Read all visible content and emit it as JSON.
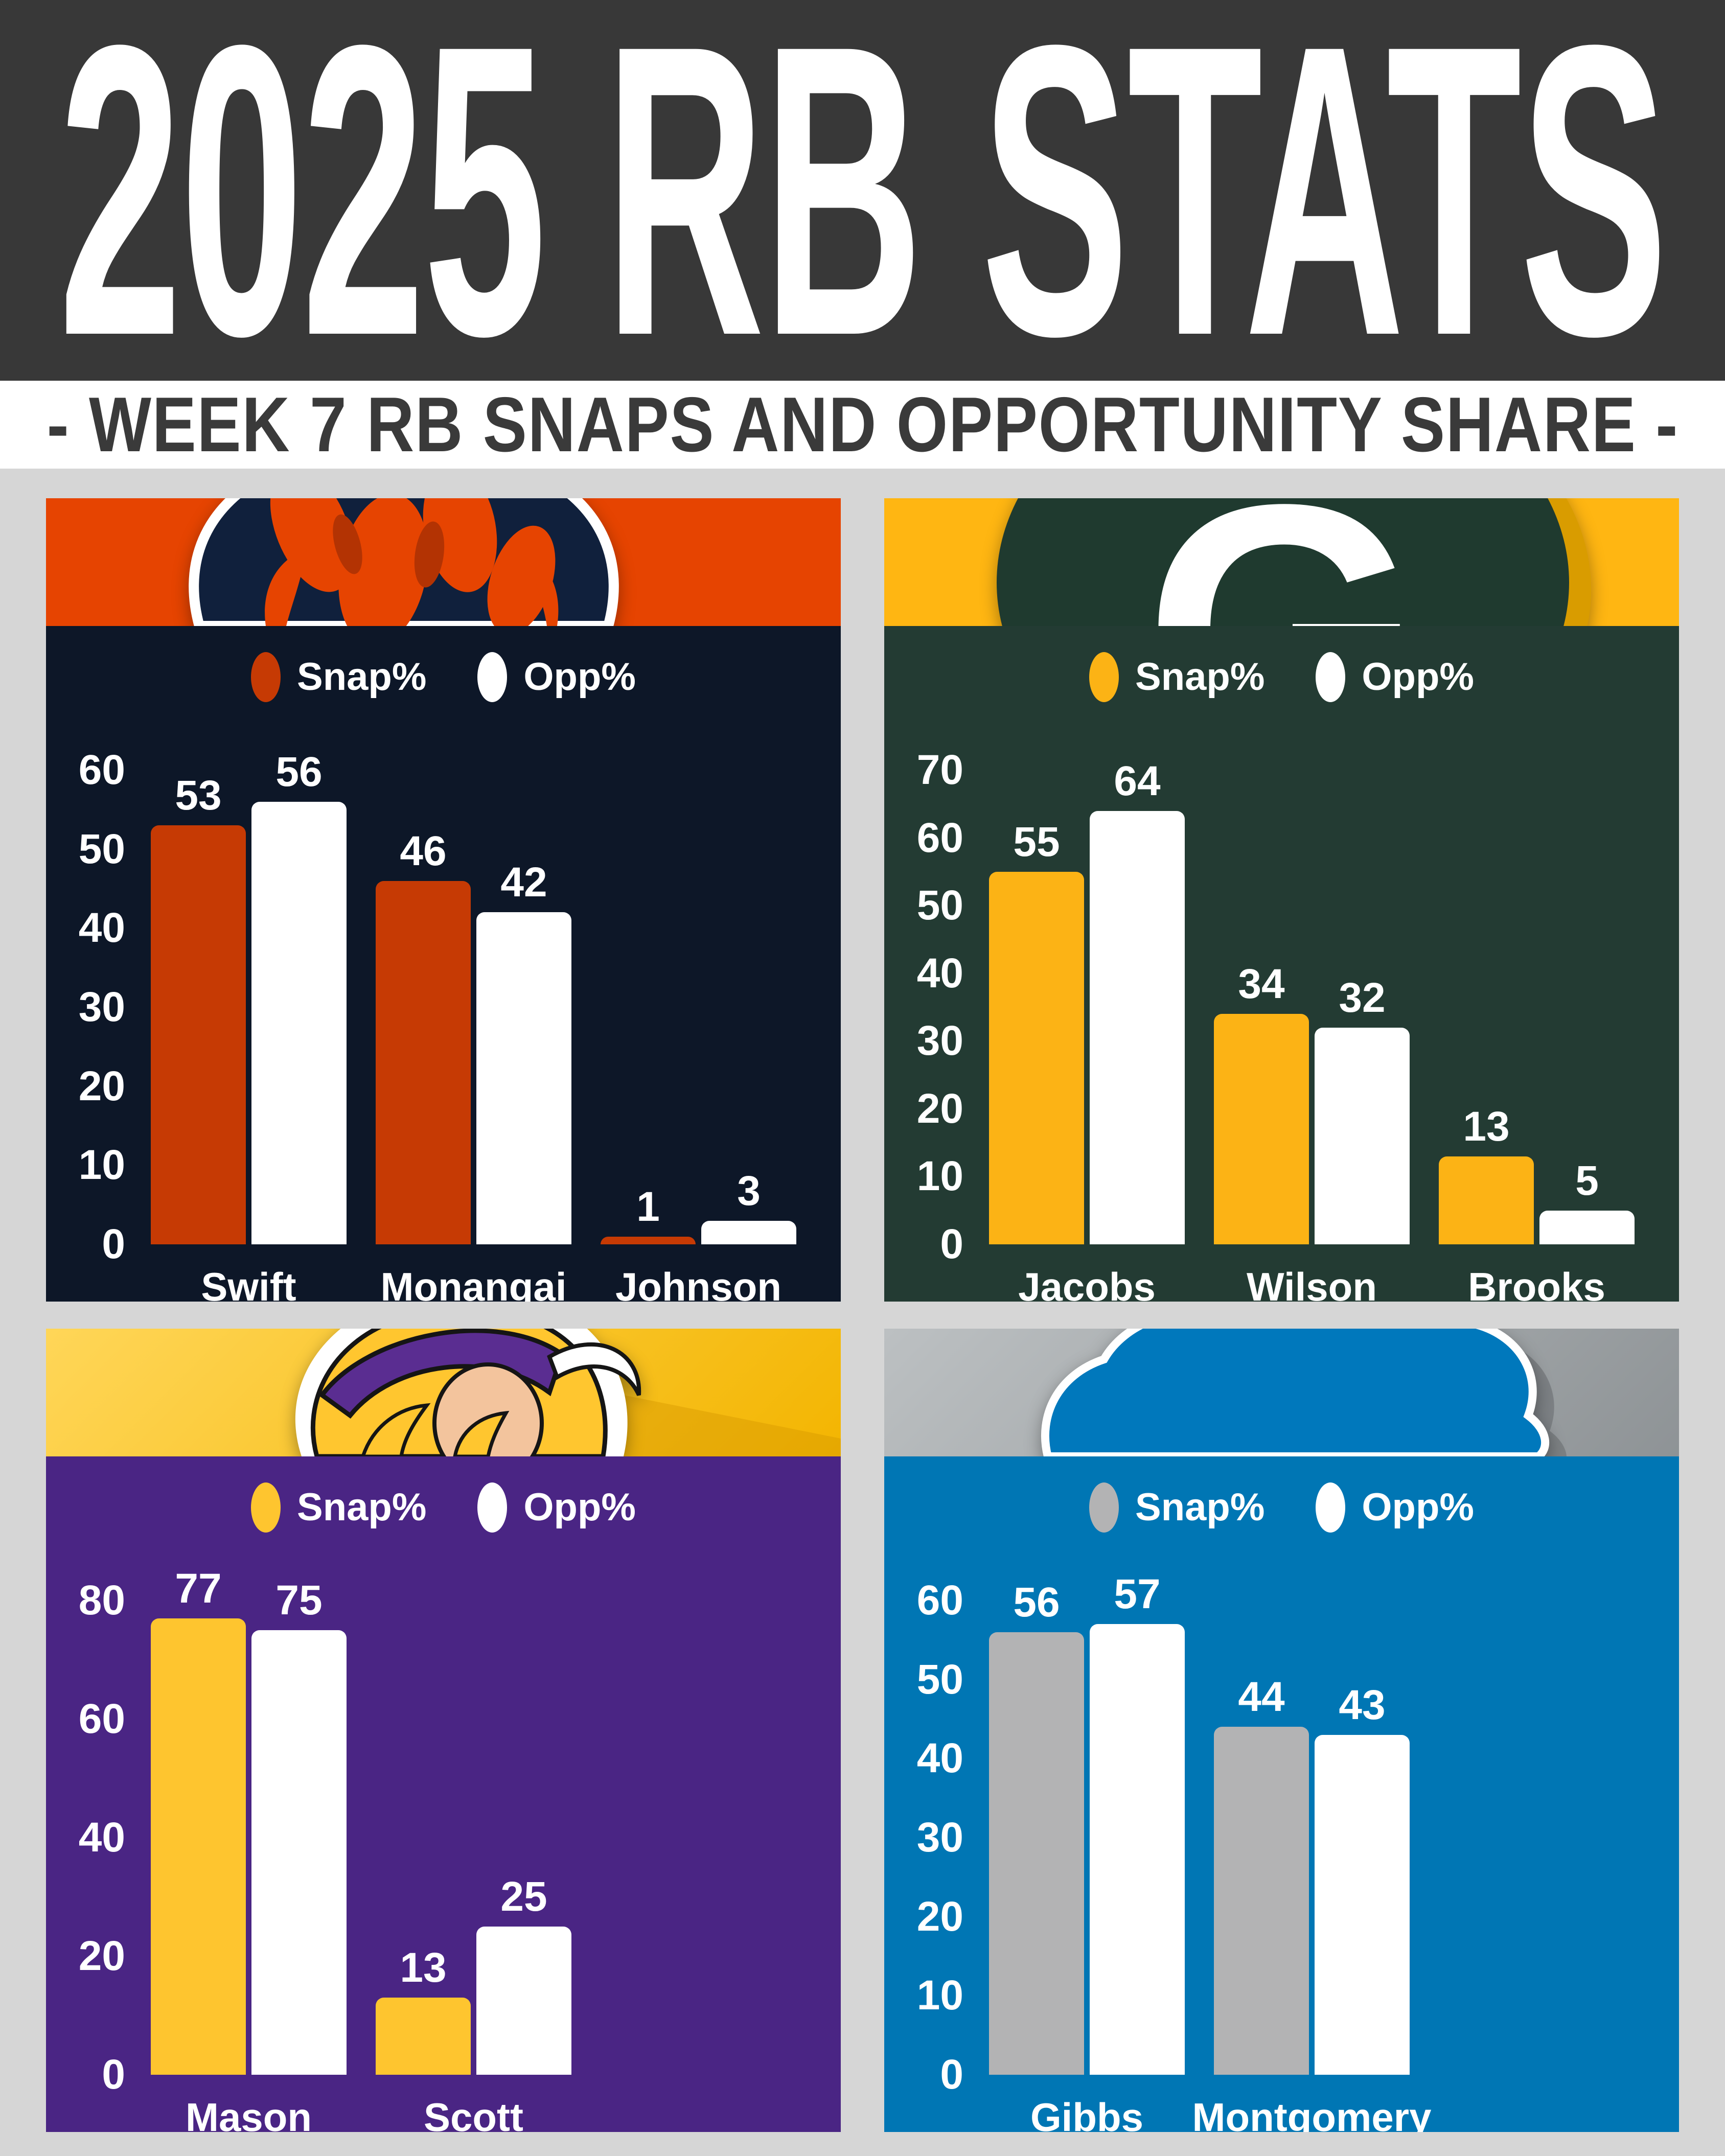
{
  "page": {
    "title": "2025 RB STATS",
    "subtitle": "- WEEK 7 RB SNAPS AND OPPORTUNITY SHARE -",
    "colors": {
      "background": "#D6D6D6",
      "title_band": "#383838",
      "title_text": "#FFFFFF",
      "subtitle_band": "#FFFFFF",
      "subtitle_text": "#3A3A3A"
    }
  },
  "chart_data": [
    {
      "type": "bar",
      "team": "Chicago Bears",
      "legend_position": "top",
      "grid": false,
      "categories": [
        "Swift",
        "Monangai",
        "Johnson"
      ],
      "series": [
        {
          "name": "Snap%",
          "values": [
            53,
            46,
            1
          ]
        },
        {
          "name": "Opp%",
          "values": [
            56,
            42,
            3
          ]
        }
      ],
      "y_ticks": [
        60,
        50,
        40,
        30,
        20,
        10,
        0
      ],
      "ylim": [
        0,
        60
      ],
      "colors": {
        "header": "#E64401",
        "chart_bg": "#0D1728",
        "snap": "#C63A04",
        "opp": "#FFFFFF",
        "text": "#FFFFFF"
      }
    },
    {
      "type": "bar",
      "team": "Green Bay Packers",
      "legend_position": "top",
      "grid": false,
      "categories": [
        "Jacobs",
        "Wilson",
        "Brooks"
      ],
      "series": [
        {
          "name": "Snap%",
          "values": [
            55,
            34,
            13
          ]
        },
        {
          "name": "Opp%",
          "values": [
            64,
            32,
            5
          ]
        }
      ],
      "y_ticks": [
        70,
        60,
        50,
        40,
        30,
        20,
        10,
        0
      ],
      "ylim": [
        0,
        70
      ],
      "colors": {
        "header": "#FFB612",
        "chart_bg": "#233B33",
        "snap": "#FCB315",
        "opp": "#FFFFFF",
        "text": "#FFFFFF"
      }
    },
    {
      "type": "bar",
      "team": "Minnesota Vikings",
      "legend_position": "top",
      "grid": false,
      "categories": [
        "Mason",
        "Scott"
      ],
      "series": [
        {
          "name": "Snap%",
          "values": [
            77,
            13
          ]
        },
        {
          "name": "Opp%",
          "values": [
            75,
            25
          ]
        }
      ],
      "y_ticks": [
        80,
        60,
        40,
        20,
        0
      ],
      "ylim": [
        0,
        80
      ],
      "colors": {
        "header_gradient": [
          "#FFD658",
          "#F3B501"
        ],
        "chart_bg": "#4A2584",
        "snap": "#FEC52F",
        "opp": "#FFFFFF",
        "text": "#FFFFFF"
      }
    },
    {
      "type": "bar",
      "team": "Detroit Lions",
      "legend_position": "top",
      "grid": false,
      "categories": [
        "Gibbs",
        "Montgomery"
      ],
      "series": [
        {
          "name": "Snap%",
          "values": [
            56,
            44
          ]
        },
        {
          "name": "Opp%",
          "values": [
            57,
            43
          ]
        }
      ],
      "y_ticks": [
        60,
        50,
        40,
        30,
        20,
        10,
        0
      ],
      "ylim": [
        0,
        60
      ],
      "colors": {
        "header_gradient": [
          "#BCC0C2",
          "#8E9396"
        ],
        "chart_bg": "#0076B4",
        "snap": "#B3B3B4",
        "opp": "#FFFFFF",
        "text": "#FFFFFF"
      }
    }
  ]
}
